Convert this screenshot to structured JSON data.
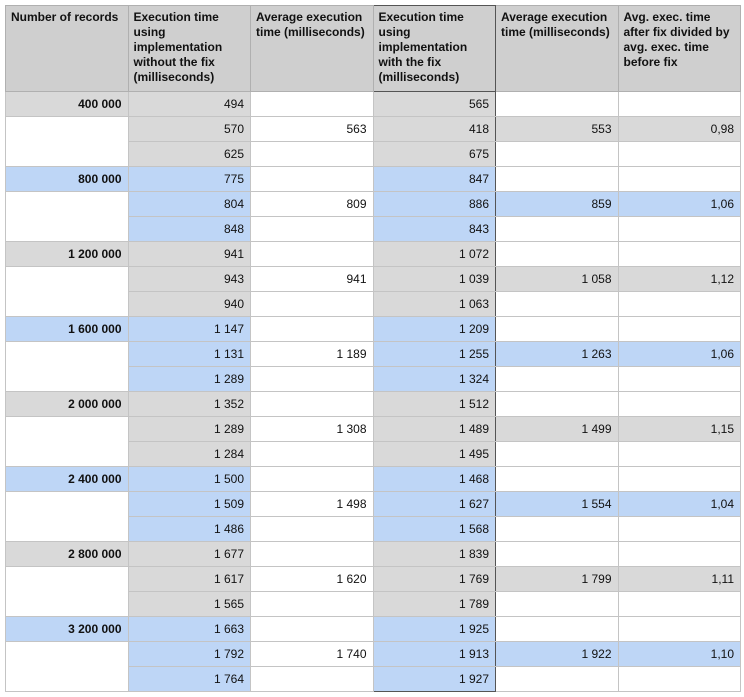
{
  "table": {
    "header": [
      "Number of records",
      "Execution time using implementation without the fix (milliseconds)",
      "Average execution time (milliseconds)",
      "Execution time using implementation with the fix (milliseconds)",
      "Average execution time (milliseconds)",
      "Avg. exec. time after fix divided by avg. exec. time before fix"
    ],
    "groups": [
      {
        "records": "400 000",
        "before": [
          "494",
          "570",
          "625"
        ],
        "avg_before": "563",
        "after": [
          "565",
          "418",
          "675"
        ],
        "avg_after": "553",
        "ratio": "0,98"
      },
      {
        "records": "800 000",
        "before": [
          "775",
          "804",
          "848"
        ],
        "avg_before": "809",
        "after": [
          "847",
          "886",
          "843"
        ],
        "avg_after": "859",
        "ratio": "1,06"
      },
      {
        "records": "1 200 000",
        "before": [
          "941",
          "943",
          "940"
        ],
        "avg_before": "941",
        "after": [
          "1 072",
          "1 039",
          "1 063"
        ],
        "avg_after": "1 058",
        "ratio": "1,12"
      },
      {
        "records": "1 600 000",
        "before": [
          "1 147",
          "1 131",
          "1 289"
        ],
        "avg_before": "1 189",
        "after": [
          "1 209",
          "1 255",
          "1 324"
        ],
        "avg_after": "1 263",
        "ratio": "1,06"
      },
      {
        "records": "2 000 000",
        "before": [
          "1 352",
          "1 289",
          "1 284"
        ],
        "avg_before": "1 308",
        "after": [
          "1 512",
          "1 489",
          "1 495"
        ],
        "avg_after": "1 499",
        "ratio": "1,15"
      },
      {
        "records": "2 400 000",
        "before": [
          "1 500",
          "1 509",
          "1 486"
        ],
        "avg_before": "1 498",
        "after": [
          "1 468",
          "1 627",
          "1 568"
        ],
        "avg_after": "1 554",
        "ratio": "1,04"
      },
      {
        "records": "2 800 000",
        "before": [
          "1 677",
          "1 617",
          "1 565"
        ],
        "avg_before": "1 620",
        "after": [
          "1 839",
          "1 769",
          "1 789"
        ],
        "avg_after": "1 799",
        "ratio": "1,11"
      },
      {
        "records": "3 200 000",
        "before": [
          "1 663",
          "1 792",
          "1 764"
        ],
        "avg_before": "1 740",
        "after": [
          "1 925",
          "1 913",
          "1 927"
        ],
        "avg_after": "1 922",
        "ratio": "1,10"
      }
    ]
  }
}
